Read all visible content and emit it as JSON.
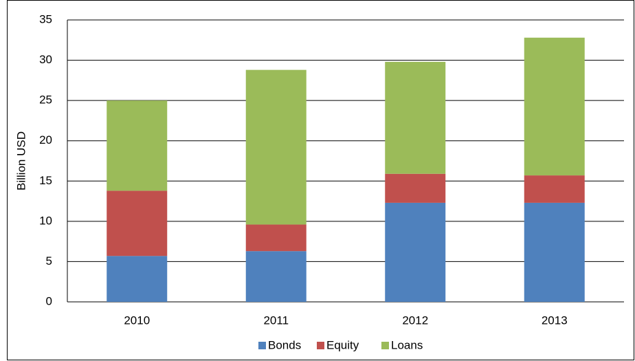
{
  "chart_data": {
    "type": "stacked_bar",
    "y_label": "Billion USD",
    "categories": [
      "2010",
      "2011",
      "2012",
      "2013"
    ],
    "series": [
      {
        "name": "Bonds",
        "color": "#4f81bd",
        "values": [
          5.7,
          6.3,
          12.3,
          12.3
        ]
      },
      {
        "name": "Equity",
        "color": "#c0504d",
        "values": [
          8.1,
          3.3,
          3.6,
          3.4
        ]
      },
      {
        "name": "Loans",
        "color": "#9bbb59",
        "values": [
          11.2,
          19.2,
          13.9,
          17.1
        ]
      }
    ],
    "ylim": [
      0,
      35
    ],
    "yticks": [
      0,
      5,
      10,
      15,
      20,
      25,
      30,
      35
    ],
    "grid": true,
    "legend": "bottom"
  }
}
